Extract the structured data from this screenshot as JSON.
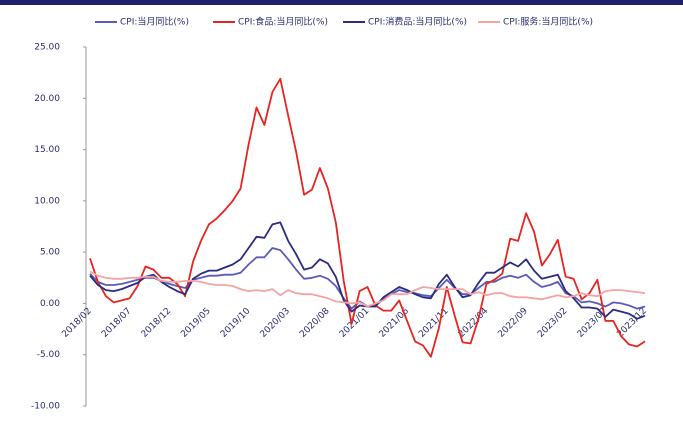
{
  "chart_data": {
    "type": "line",
    "categories": [
      "2018/02",
      null,
      null,
      null,
      null,
      "2018/07",
      null,
      null,
      null,
      null,
      "2018/12",
      null,
      null,
      null,
      null,
      "2019/05",
      null,
      null,
      null,
      null,
      "2019/10",
      null,
      null,
      null,
      null,
      "2020/03",
      null,
      null,
      null,
      null,
      "2020/08",
      null,
      null,
      null,
      null,
      "2021/01",
      null,
      null,
      null,
      null,
      "2021/06",
      null,
      null,
      null,
      null,
      "2021/11",
      null,
      null,
      null,
      null,
      "2022/04",
      null,
      null,
      null,
      null,
      "2022/09",
      null,
      null,
      null,
      null,
      "2023/02",
      null,
      null,
      null,
      null,
      "2023/07",
      null,
      null,
      null,
      null,
      "2023/12"
    ],
    "series": [
      {
        "name": "CPI:当月同比(%)",
        "color": "#5b5bb8",
        "values": [
          2.9,
          2.1,
          1.8,
          1.8,
          1.9,
          2.1,
          2.3,
          2.5,
          2.5,
          2.2,
          1.9,
          1.7,
          1.5,
          2.3,
          2.5,
          2.7,
          2.7,
          2.8,
          2.8,
          3.0,
          3.8,
          4.5,
          4.5,
          5.4,
          5.2,
          4.3,
          3.3,
          2.4,
          2.5,
          2.7,
          2.4,
          1.7,
          0.5,
          -0.5,
          0.2,
          -0.3,
          -0.2,
          0.4,
          0.9,
          1.3,
          1.1,
          1.0,
          0.8,
          0.7,
          1.5,
          2.3,
          1.5,
          0.9,
          0.9,
          1.5,
          2.1,
          2.1,
          2.5,
          2.7,
          2.5,
          2.8,
          2.1,
          1.6,
          1.8,
          2.1,
          1.0,
          0.7,
          0.1,
          0.2,
          0.0,
          -0.3,
          0.1,
          0.0,
          -0.2,
          -0.5,
          -0.3
        ]
      },
      {
        "name": "CPI:食品:当月同比(%)",
        "color": "#e8241f",
        "values": [
          4.4,
          2.1,
          0.7,
          0.1,
          0.3,
          0.5,
          1.7,
          3.6,
          3.3,
          2.5,
          2.5,
          1.9,
          0.7,
          4.1,
          6.1,
          7.7,
          8.3,
          9.1,
          10.0,
          11.2,
          15.5,
          19.1,
          17.4,
          20.6,
          21.9,
          18.3,
          14.8,
          10.6,
          11.1,
          13.2,
          11.2,
          7.9,
          2.2,
          -2.0,
          1.2,
          1.6,
          -0.2,
          -0.7,
          -0.7,
          0.3,
          -1.7,
          -3.7,
          -4.1,
          -5.2,
          -2.4,
          1.6,
          -1.2,
          -3.8,
          -3.9,
          -1.5,
          1.9,
          2.3,
          2.9,
          6.3,
          6.1,
          8.8,
          7.0,
          3.7,
          4.8,
          6.2,
          2.6,
          2.4,
          0.4,
          1.0,
          2.3,
          -1.7,
          -1.7,
          -3.2,
          -4.0,
          -4.2,
          -3.7
        ]
      },
      {
        "name": "CPI:消费品:当月同比(%)",
        "color": "#2b2b82",
        "values": [
          2.7,
          1.8,
          1.3,
          1.2,
          1.4,
          1.7,
          2.0,
          2.6,
          2.8,
          2.1,
          1.6,
          1.2,
          0.9,
          2.4,
          2.9,
          3.2,
          3.2,
          3.5,
          3.8,
          4.3,
          5.4,
          6.5,
          6.4,
          7.7,
          7.9,
          6.1,
          4.8,
          3.3,
          3.5,
          4.3,
          3.9,
          2.6,
          0.3,
          -0.8,
          -0.2,
          -0.3,
          -0.3,
          0.6,
          1.1,
          1.6,
          1.3,
          0.9,
          0.6,
          0.5,
          1.9,
          2.8,
          1.6,
          0.6,
          0.8,
          2.0,
          3.0,
          3.0,
          3.5,
          4.0,
          3.6,
          4.3,
          3.2,
          2.4,
          2.6,
          2.8,
          1.2,
          0.5,
          -0.4,
          -0.4,
          -0.5,
          -1.3,
          -0.6,
          -0.8,
          -1.0,
          -1.5,
          -1.2
        ]
      },
      {
        "name": "CPI:服务:当月同比(%)",
        "color": "#f5a3a3",
        "values": [
          3.1,
          2.7,
          2.5,
          2.4,
          2.4,
          2.5,
          2.5,
          2.6,
          2.6,
          2.2,
          2.1,
          2.1,
          2.2,
          2.2,
          2.1,
          1.9,
          1.8,
          1.8,
          1.7,
          1.4,
          1.2,
          1.3,
          1.2,
          1.4,
          0.8,
          1.3,
          1.0,
          0.9,
          0.9,
          0.7,
          0.5,
          0.2,
          0.1,
          0.0,
          0.1,
          -0.3,
          0.0,
          0.3,
          0.9,
          0.9,
          0.9,
          1.3,
          1.6,
          1.5,
          1.4,
          1.4,
          1.4,
          1.4,
          0.9,
          1.1,
          0.8,
          1.0,
          1.0,
          0.7,
          0.6,
          0.6,
          0.5,
          0.4,
          0.6,
          0.8,
          0.6,
          0.7,
          1.0,
          0.8,
          0.7,
          1.2,
          1.3,
          1.3,
          1.2,
          1.1,
          1.0
        ]
      }
    ],
    "ylim": [
      -10,
      25
    ],
    "yticks": [
      {
        "value": -10,
        "label": "-10.00"
      },
      {
        "value": -5,
        "label": "-5.00"
      },
      {
        "value": 0,
        "label": "0.00"
      },
      {
        "value": 5,
        "label": "5.00"
      },
      {
        "value": 10,
        "label": "10.00"
      },
      {
        "value": 15,
        "label": "15.00"
      },
      {
        "value": 20,
        "label": "20.00"
      },
      {
        "value": 25,
        "label": "25.00"
      }
    ],
    "grid": false,
    "legend": "top"
  }
}
